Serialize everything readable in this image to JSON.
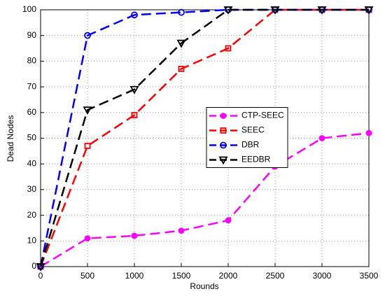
{
  "chart_data": {
    "type": "line",
    "x_label": "Rounds",
    "y_label": "Dead Nodes",
    "x": [
      0,
      500,
      1000,
      1500,
      2000,
      2500,
      3000,
      3500
    ],
    "series": [
      {
        "name": "CTP-SEEC",
        "color": "#ff00ff",
        "marker": "filled-circle",
        "values": [
          0,
          11,
          12,
          14,
          18,
          39,
          50,
          52
        ]
      },
      {
        "name": "SEEC",
        "color": "#ff0000",
        "marker": "square",
        "values": [
          0,
          47,
          59,
          77,
          85,
          100,
          100,
          100
        ]
      },
      {
        "name": "DBR",
        "color": "#0000ff",
        "marker": "circle",
        "values": [
          0,
          90,
          98,
          99,
          100,
          100,
          100,
          100
        ]
      },
      {
        "name": "EEDBR",
        "color": "#000000",
        "marker": "triangle-down",
        "values": [
          0,
          61,
          69,
          87,
          100,
          100,
          100,
          100
        ]
      }
    ],
    "xlim": [
      0,
      3500
    ],
    "xticks": [
      0,
      500,
      1000,
      1500,
      2000,
      2500,
      3000,
      3500
    ],
    "ylim": [
      0,
      100
    ],
    "yticks": [
      0,
      10,
      20,
      30,
      40,
      50,
      60,
      70,
      80,
      90,
      100
    ],
    "grid": true,
    "legend": "center right"
  }
}
